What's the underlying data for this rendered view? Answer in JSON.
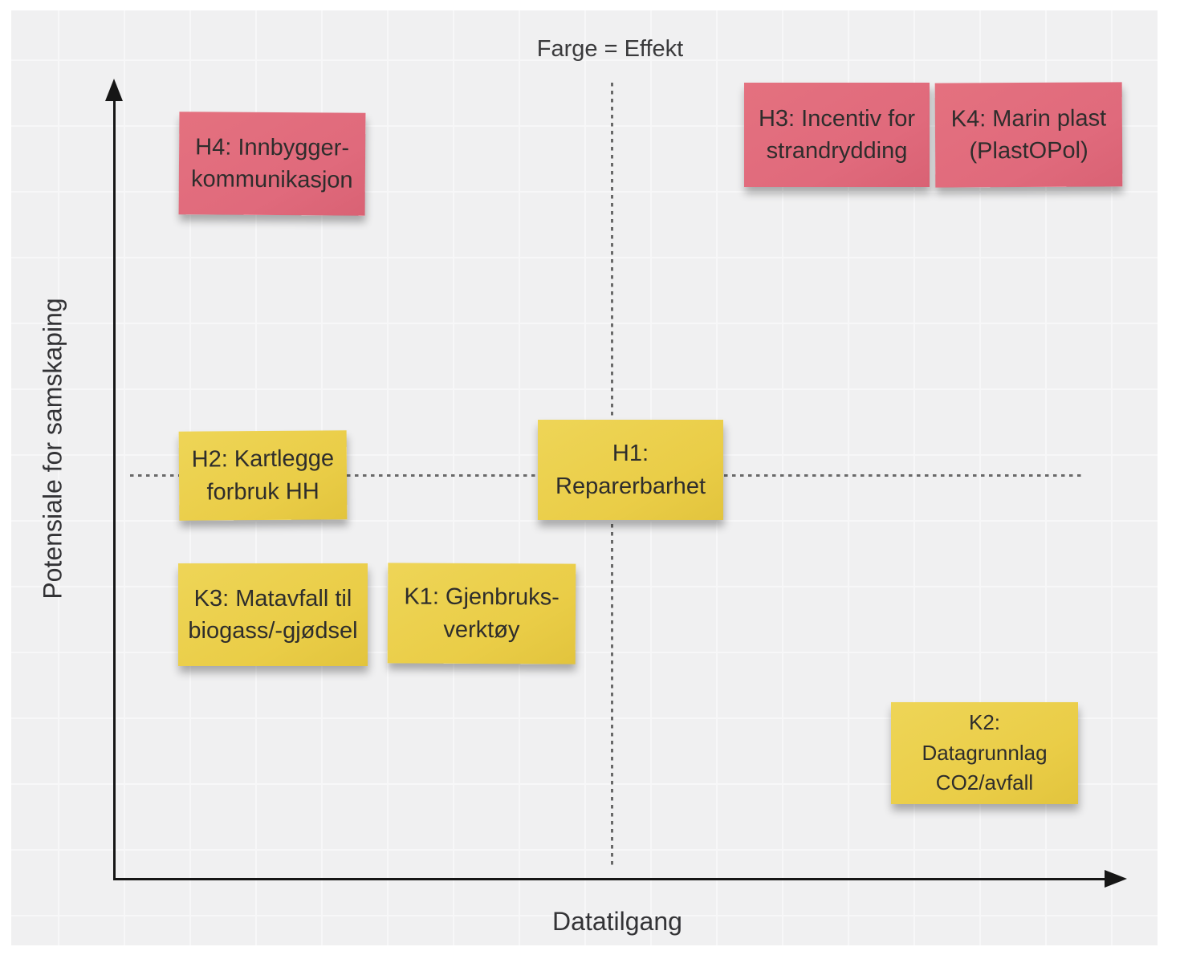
{
  "board": {
    "title": "Farge = Effekt",
    "x_axis": {
      "label": "Datatilgang"
    },
    "y_axis": {
      "label": "Potensiale for samskaping"
    }
  },
  "colors": {
    "canvas_background": "#f0f0f1",
    "grid_line": "#f7f7f8",
    "axis": "#161616",
    "dashed_divider": "#696969",
    "note_pink": "#e06a7c",
    "note_yellow": "#eacd47",
    "note_text": "#2e2d2c"
  },
  "notes": [
    {
      "id": "H4",
      "color": "pink",
      "lines": [
        "H4: Innbygger-",
        "kommunikasjon"
      ]
    },
    {
      "id": "H3",
      "color": "pink",
      "lines": [
        "H3: Incentiv for",
        "strandrydding"
      ]
    },
    {
      "id": "K4",
      "color": "pink",
      "lines": [
        "K4: Marin plast",
        "(PlastOPol)"
      ]
    },
    {
      "id": "H2",
      "color": "yellow",
      "lines": [
        "H2: Kartlegge",
        "forbruk HH"
      ]
    },
    {
      "id": "H1",
      "color": "yellow",
      "lines": [
        "H1:",
        "Reparerbarhet"
      ]
    },
    {
      "id": "K3",
      "color": "yellow",
      "lines": [
        "K3: Matavfall til",
        "biogass/-gjødsel"
      ]
    },
    {
      "id": "K1",
      "color": "yellow",
      "lines": [
        "K1: Gjenbruks-",
        "verktøy"
      ]
    },
    {
      "id": "K2",
      "color": "yellow",
      "lines": [
        "K2:",
        "Datagrunnlag",
        "CO2/avfall"
      ]
    }
  ]
}
